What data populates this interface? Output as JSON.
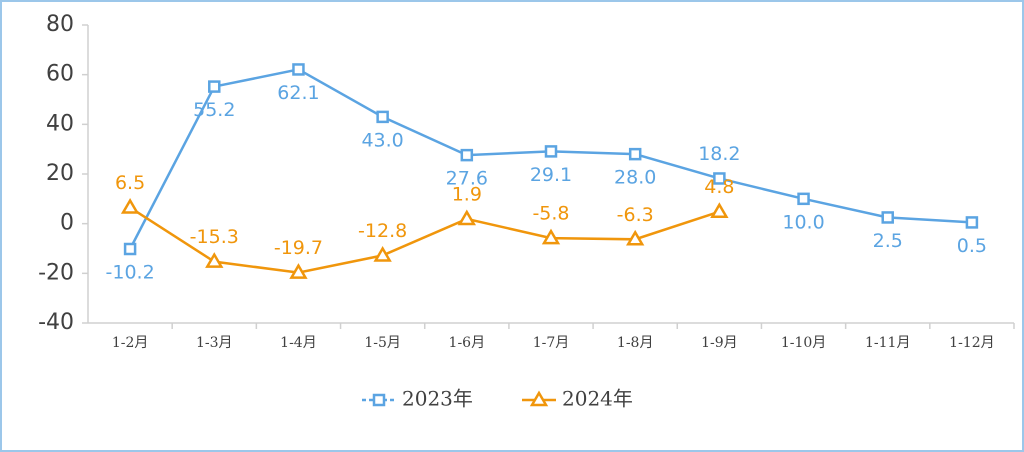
{
  "chart_data": {
    "type": "line",
    "categories": [
      "1-2月",
      "1-3月",
      "1-4月",
      "1-5月",
      "1-6月",
      "1-7月",
      "1-8月",
      "1-9月",
      "1-10月",
      "1-11月",
      "1-12月"
    ],
    "series": [
      {
        "name": "2023年",
        "color": "#5ba4e2",
        "marker": "square",
        "values": [
          -10.2,
          55.2,
          62.1,
          43.0,
          27.6,
          29.1,
          28.0,
          18.2,
          10.0,
          2.5,
          0.5
        ],
        "value_labels": [
          "-10.2",
          "55.2",
          "62.1",
          "43.0",
          "27.6",
          "29.1",
          "28.0",
          "18.2",
          "10.0",
          "2.5",
          "0.5"
        ]
      },
      {
        "name": "2024年",
        "color": "#f0960c",
        "marker": "triangle",
        "values": [
          6.5,
          -15.3,
          -19.7,
          -12.8,
          1.9,
          -5.8,
          -6.3,
          4.8,
          null,
          null,
          null
        ],
        "value_labels": [
          "6.5",
          "-15.3",
          "-19.7",
          "-12.8",
          "1.9",
          "-5.8",
          "-6.3",
          "4.8",
          null,
          null,
          null
        ]
      }
    ],
    "ylim": [
      -40,
      80
    ],
    "yticks": [
      -40,
      -20,
      0,
      20,
      40,
      60,
      80
    ],
    "grid": false,
    "legend": "bottom"
  }
}
